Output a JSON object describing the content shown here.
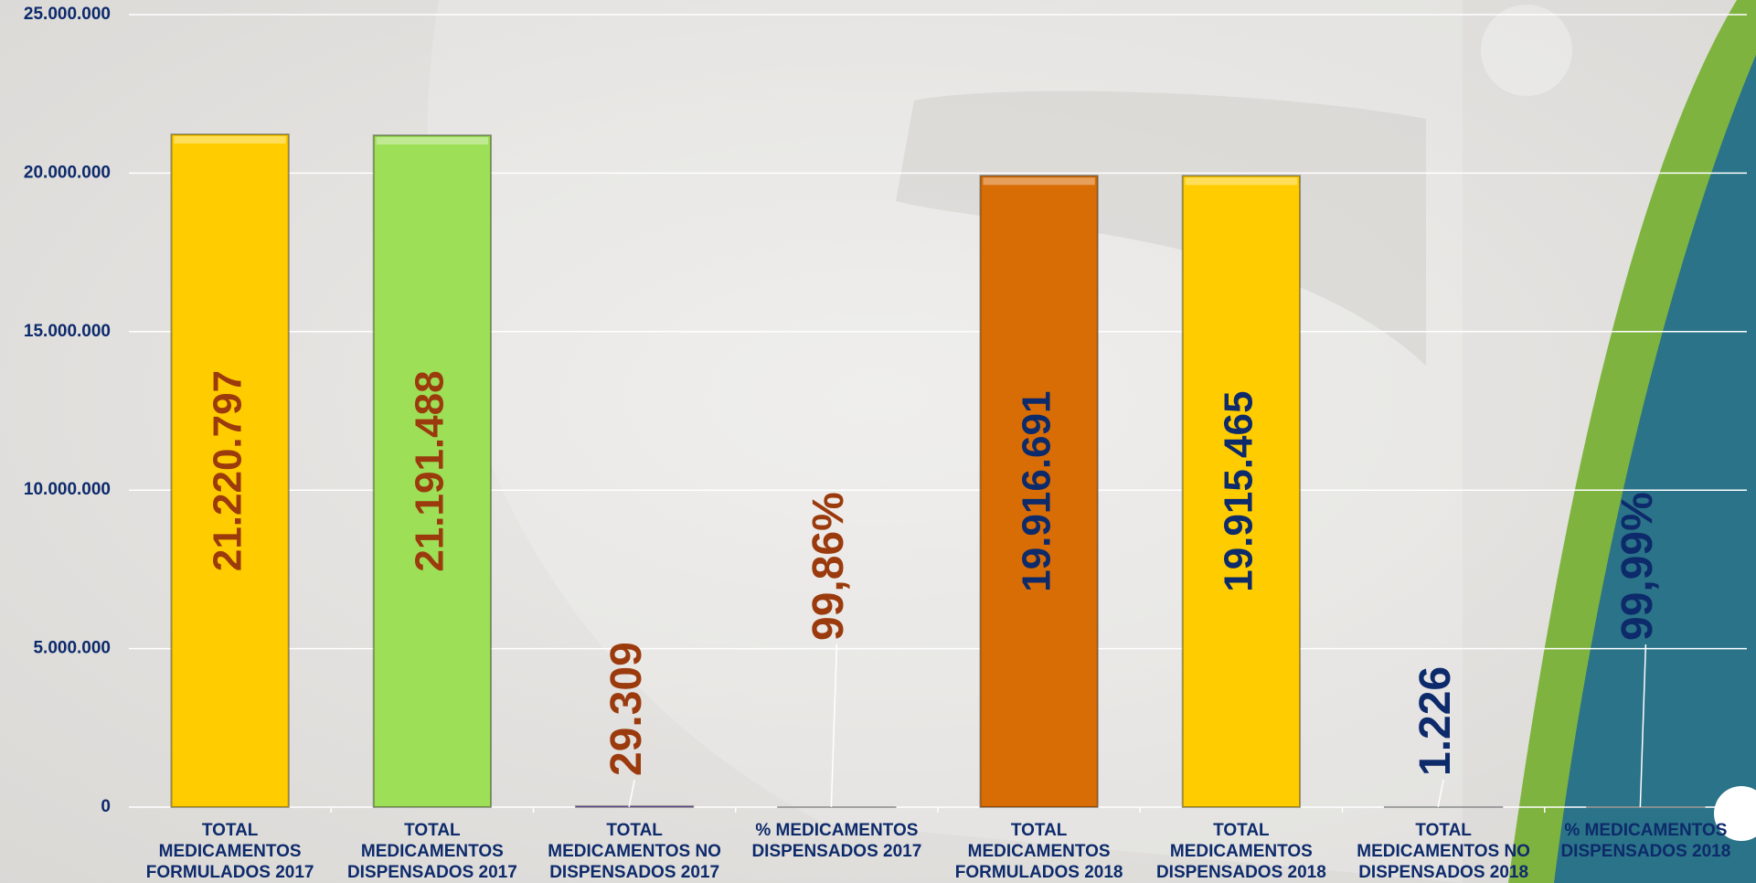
{
  "chart_data": {
    "type": "bar",
    "categories": [
      "TOTAL MEDICAMENTOS FORMULADOS 2017",
      "TOTAL MEDICAMENTOS DISPENSADOS 2017",
      "TOTAL MEDICAMENTOS NO DISPENSADOS 2017",
      "% MEDICAMENTOS DISPENSADOS 2017",
      "TOTAL MEDICAMENTOS FORMULADOS 2018",
      "TOTAL MEDICAMENTOS DISPENSADOS 2018",
      "TOTAL MEDICAMENTOS NO DISPENSADOS 2018",
      "% MEDICAMENTOS DISPENSADOS 2018"
    ],
    "values": [
      21220797,
      21191488,
      29309,
      99.86,
      19916691,
      19915465,
      1226,
      99.99
    ],
    "value_labels": [
      "21.220.797",
      "21.191.488",
      "29.309",
      "99,86%",
      "19.916.691",
      "19.915.465",
      "1.226",
      "99,99%"
    ],
    "colors": [
      "#ffcc00",
      "#9ddf56",
      "#8f6ad8",
      "#c8c8c8",
      "#d96d05",
      "#ffcc00",
      "#b0b0b0",
      "#b0b0b0"
    ],
    "label_colors": [
      "#9b3a0c",
      "#9b3a0c",
      "#9b3a0c",
      "#9b3a0c",
      "#0d2a6b",
      "#0d2a6b",
      "#0d2a6b",
      "#0d2a6b"
    ],
    "ylim": [
      0,
      25000000
    ],
    "yticks": [
      {
        "value": 0,
        "label": "0"
      },
      {
        "value": 5000000,
        "label": "5.000.000"
      },
      {
        "value": 10000000,
        "label": "10.000.000"
      },
      {
        "value": 15000000,
        "label": "15.000.000"
      },
      {
        "value": 20000000,
        "label": "20.000.000"
      },
      {
        "value": 25000000,
        "label": "25.000.000"
      }
    ],
    "grid": true
  }
}
